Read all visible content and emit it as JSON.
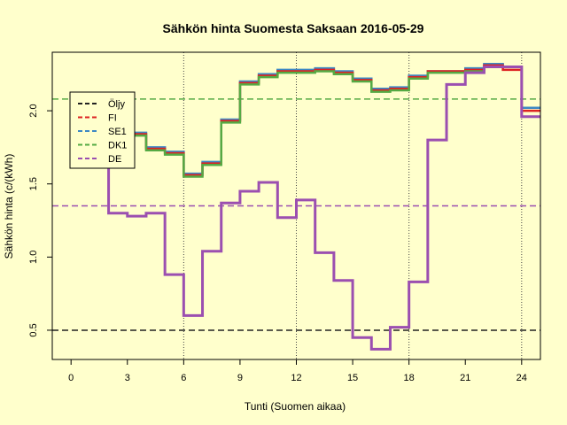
{
  "chart_data": {
    "type": "line",
    "title": "Sähkön hinta Suomesta Saksaan 2016-05-29",
    "xlabel": "Tunti (Suomen aikaa)",
    "ylabel": "Sähkön hinta (c/(kWh)",
    "xlim": [
      -1,
      25
    ],
    "ylim": [
      0.3,
      2.4
    ],
    "xticks": [
      0,
      3,
      6,
      9,
      12,
      15,
      18,
      21,
      24
    ],
    "yticks": [
      0.5,
      1.0,
      1.5,
      2.0
    ],
    "ytick_labels": [
      "0.5",
      "1.0",
      "1.5",
      "2.0"
    ],
    "vlines": [
      6,
      12,
      18,
      24
    ],
    "step": true,
    "x": [
      1,
      2,
      3,
      4,
      5,
      6,
      7,
      8,
      9,
      10,
      11,
      12,
      13,
      14,
      15,
      16,
      17,
      18,
      19,
      20,
      21,
      22,
      23,
      24,
      25
    ],
    "series": [
      {
        "name": "FI",
        "color": "#dd2222",
        "width": 2.5,
        "values": [
          1.88,
          1.88,
          1.84,
          1.74,
          1.71,
          1.56,
          1.64,
          1.93,
          2.19,
          2.24,
          2.27,
          2.27,
          2.28,
          2.26,
          2.21,
          2.14,
          2.15,
          2.23,
          2.27,
          2.27,
          2.28,
          2.31,
          2.28,
          2.0,
          2.0
        ]
      },
      {
        "name": "SE1",
        "color": "#3c88c4",
        "width": 2.5,
        "values": [
          1.89,
          1.89,
          1.85,
          1.75,
          1.72,
          1.57,
          1.65,
          1.94,
          2.2,
          2.25,
          2.28,
          2.28,
          2.29,
          2.27,
          2.22,
          2.15,
          2.16,
          2.24,
          2.27,
          2.27,
          2.29,
          2.32,
          2.3,
          2.02,
          2.02
        ]
      },
      {
        "name": "DK1",
        "color": "#55aa44",
        "width": 2.5,
        "values": [
          1.87,
          1.87,
          1.83,
          1.73,
          1.7,
          1.55,
          1.63,
          1.92,
          2.18,
          2.23,
          2.26,
          2.26,
          2.27,
          2.25,
          2.2,
          2.13,
          2.14,
          2.22,
          2.26,
          2.26,
          2.27,
          2.3,
          2.3,
          1.96,
          1.96
        ]
      },
      {
        "name": "DE",
        "color": "#9b4fb0",
        "width": 3,
        "values": [
          1.75,
          1.3,
          1.28,
          1.3,
          0.88,
          0.6,
          1.04,
          1.37,
          1.45,
          1.51,
          1.27,
          1.39,
          1.03,
          0.84,
          0.45,
          0.37,
          0.52,
          0.83,
          1.8,
          2.18,
          2.26,
          2.3,
          2.3,
          1.96,
          1.96
        ]
      }
    ],
    "hlines": [
      {
        "name": "Öljy",
        "value": 0.5,
        "color": "#222222"
      },
      {
        "name": "DK1",
        "value": 2.08,
        "color": "#55aa44"
      },
      {
        "name": "DE",
        "value": 1.35,
        "color": "#9b4fb0"
      }
    ],
    "legend": {
      "position": "top-left",
      "entries": [
        {
          "label": "Öljy",
          "color": "#222222"
        },
        {
          "label": "FI",
          "color": "#dd2222"
        },
        {
          "label": "SE1",
          "color": "#3c88c4"
        },
        {
          "label": "DK1",
          "color": "#55aa44"
        },
        {
          "label": "DE",
          "color": "#9b4fb0"
        }
      ]
    },
    "background": "#ffffcc"
  }
}
